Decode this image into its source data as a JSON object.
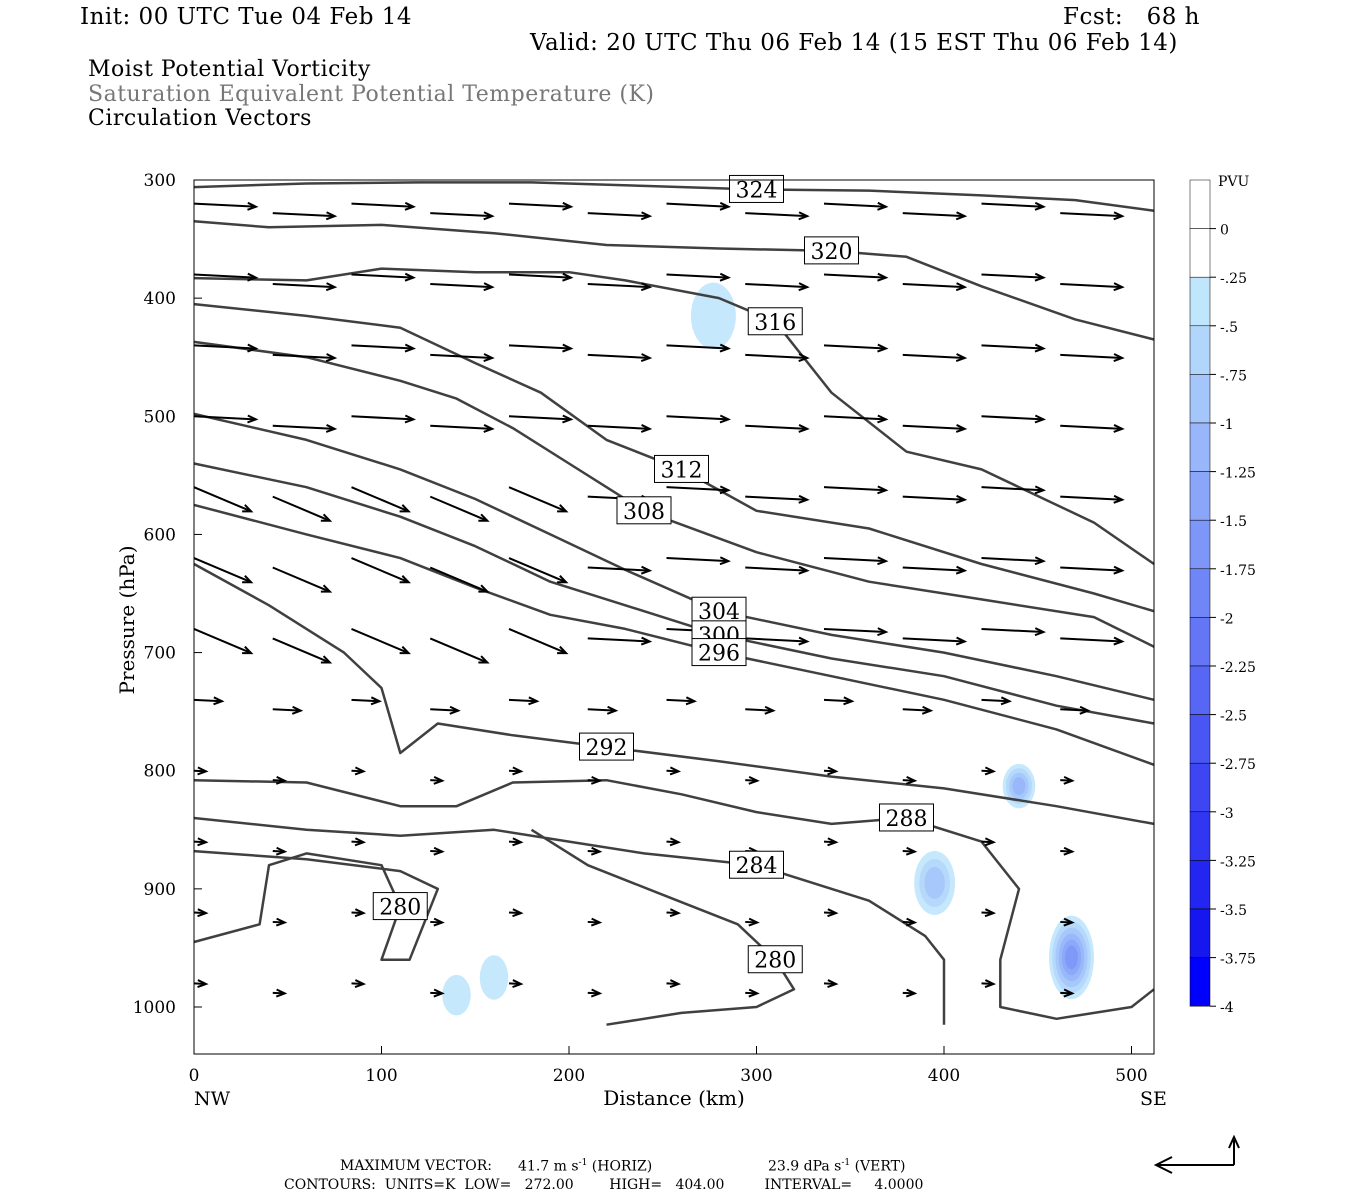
{
  "header": {
    "init": "Init: 00 UTC Tue 04 Feb 14",
    "fcst": "Fcst:   68 h",
    "valid": "Valid: 20 UTC Thu 06 Feb 14 (15 EST Thu 06 Feb 14)",
    "field1": "Moist Potential Vorticity",
    "field2": "Saturation Equivalent Potential Temperature (K)",
    "field3": "Circulation Vectors"
  },
  "footer": {
    "max_vector_label": "MAXIMUM VECTOR:",
    "horiz_value": "41.7 m s",
    "horiz_unit": "(HORIZ)",
    "vert_value": "23.9 dPa s",
    "vert_unit": "(VERT)",
    "contours": "CONTOURS:  UNITS=K  LOW=   272.00        HIGH=   404.00         INTERVAL=     4.0000"
  },
  "colors": {
    "contour": "#404040",
    "vector": "#000000",
    "pv_shades": [
      "#ffffff",
      "#ffffff",
      "#bfe6fc",
      "#b2d6fb",
      "#a5c6fa",
      "#98b6f9",
      "#8ba6f8",
      "#7e96f7",
      "#7186f6",
      "#6476f5",
      "#5766f4",
      "#4a56f3",
      "#3d46f2",
      "#3036f1",
      "#2326f0",
      "#1616ef",
      "#0000ff"
    ]
  },
  "chart_data": {
    "type": "cross-section",
    "xlabel": "Distance (km)",
    "ylabel": "Pressure (hPa)",
    "xlim": [
      0,
      512
    ],
    "ylim": [
      1040,
      300
    ],
    "xticks": [
      0,
      100,
      200,
      300,
      400,
      500
    ],
    "yticks": [
      300,
      400,
      500,
      600,
      700,
      800,
      900,
      1000
    ],
    "x_end_labels": {
      "left": "NW",
      "right": "SE"
    },
    "colorbar": {
      "title": "PVU",
      "labels": [
        "0",
        "-.25",
        "-.5",
        "-.75",
        "-1",
        "-1.25",
        "-1.5",
        "-1.75",
        "-2",
        "-2.25",
        "-2.5",
        "-2.75",
        "-3",
        "-3.25",
        "-3.5",
        "-3.75",
        "-4"
      ]
    },
    "isentropes": [
      {
        "label": "324",
        "pts": [
          [
            0,
            306
          ],
          [
            60,
            303
          ],
          [
            120,
            302
          ],
          [
            180,
            302
          ],
          [
            240,
            305
          ],
          [
            300,
            308
          ],
          [
            360,
            309
          ],
          [
            420,
            313
          ],
          [
            470,
            317
          ],
          [
            512,
            326
          ]
        ]
      },
      {
        "label": "320",
        "pts": [
          [
            0,
            335
          ],
          [
            40,
            340
          ],
          [
            100,
            338
          ],
          [
            160,
            345
          ],
          [
            220,
            355
          ],
          [
            280,
            358
          ],
          [
            340,
            360
          ],
          [
            380,
            365
          ],
          [
            420,
            390
          ],
          [
            470,
            418
          ],
          [
            512,
            435
          ]
        ]
      },
      {
        "label": "316",
        "pts": [
          [
            0,
            383
          ],
          [
            60,
            385
          ],
          [
            100,
            375
          ],
          [
            150,
            378
          ],
          [
            200,
            378
          ],
          [
            230,
            385
          ],
          [
            280,
            400
          ],
          [
            310,
            420
          ],
          [
            340,
            480
          ],
          [
            360,
            505
          ],
          [
            380,
            530
          ],
          [
            420,
            545
          ],
          [
            480,
            590
          ],
          [
            512,
            625
          ]
        ]
      },
      {
        "label": "312",
        "pts": [
          [
            0,
            405
          ],
          [
            60,
            415
          ],
          [
            110,
            425
          ],
          [
            150,
            455
          ],
          [
            185,
            480
          ],
          [
            220,
            520
          ],
          [
            260,
            545
          ],
          [
            300,
            580
          ],
          [
            360,
            595
          ],
          [
            420,
            625
          ],
          [
            480,
            650
          ],
          [
            512,
            665
          ]
        ]
      },
      {
        "label": "308",
        "pts": [
          [
            0,
            437
          ],
          [
            60,
            450
          ],
          [
            110,
            470
          ],
          [
            140,
            485
          ],
          [
            170,
            510
          ],
          [
            200,
            540
          ],
          [
            240,
            580
          ],
          [
            300,
            615
          ],
          [
            360,
            640
          ],
          [
            420,
            655
          ],
          [
            480,
            670
          ],
          [
            512,
            695
          ]
        ]
      },
      {
        "label": "304",
        "pts": [
          [
            0,
            498
          ],
          [
            60,
            520
          ],
          [
            110,
            545
          ],
          [
            150,
            570
          ],
          [
            190,
            600
          ],
          [
            230,
            630
          ],
          [
            280,
            665
          ],
          [
            340,
            685
          ],
          [
            400,
            700
          ],
          [
            460,
            720
          ],
          [
            512,
            740
          ]
        ]
      },
      {
        "label": "300",
        "pts": [
          [
            0,
            540
          ],
          [
            60,
            560
          ],
          [
            110,
            585
          ],
          [
            150,
            610
          ],
          [
            190,
            640
          ],
          [
            230,
            660
          ],
          [
            280,
            685
          ],
          [
            340,
            705
          ],
          [
            400,
            720
          ],
          [
            460,
            745
          ],
          [
            512,
            760
          ]
        ]
      },
      {
        "label": "296",
        "pts": [
          [
            0,
            575
          ],
          [
            60,
            600
          ],
          [
            110,
            620
          ],
          [
            150,
            645
          ],
          [
            190,
            668
          ],
          [
            230,
            680
          ],
          [
            280,
            700
          ],
          [
            340,
            720
          ],
          [
            400,
            740
          ],
          [
            460,
            765
          ],
          [
            512,
            795
          ]
        ]
      },
      {
        "label": "292",
        "pts": [
          [
            0,
            625
          ],
          [
            40,
            660
          ],
          [
            80,
            700
          ],
          [
            100,
            730
          ],
          [
            110,
            785
          ],
          [
            130,
            760
          ],
          [
            170,
            770
          ],
          [
            220,
            780
          ],
          [
            280,
            792
          ],
          [
            340,
            805
          ],
          [
            400,
            815
          ],
          [
            460,
            830
          ],
          [
            512,
            845
          ]
        ]
      },
      {
        "label": "288",
        "pts": [
          [
            0,
            808
          ],
          [
            60,
            810
          ],
          [
            110,
            830
          ],
          [
            140,
            830
          ],
          [
            170,
            810
          ],
          [
            220,
            808
          ],
          [
            260,
            820
          ],
          [
            300,
            835
          ],
          [
            340,
            845
          ],
          [
            380,
            840
          ],
          [
            420,
            860
          ],
          [
            440,
            900
          ],
          [
            430,
            960
          ],
          [
            430,
            1000
          ],
          [
            460,
            1010
          ],
          [
            500,
            1000
          ],
          [
            512,
            985
          ]
        ]
      },
      {
        "label": "284",
        "pts": [
          [
            0,
            840
          ],
          [
            60,
            850
          ],
          [
            110,
            855
          ],
          [
            160,
            850
          ],
          [
            200,
            860
          ],
          [
            240,
            870
          ],
          [
            300,
            880
          ],
          [
            360,
            910
          ],
          [
            390,
            940
          ],
          [
            400,
            960
          ],
          [
            400,
            1015
          ]
        ]
      },
      {
        "label": "280",
        "pts": [
          [
            0,
            868
          ],
          [
            60,
            875
          ],
          [
            110,
            885
          ],
          [
            130,
            900
          ],
          [
            115,
            960
          ],
          [
            100,
            960
          ],
          [
            110,
            915
          ],
          [
            100,
            880
          ],
          [
            60,
            870
          ],
          [
            40,
            880
          ],
          [
            35,
            930
          ],
          [
            0,
            945
          ]
        ]
      },
      {
        "label": "280",
        "pts": [
          [
            180,
            850
          ],
          [
            210,
            880
          ],
          [
            250,
            905
          ],
          [
            290,
            930
          ],
          [
            310,
            960
          ],
          [
            320,
            985
          ],
          [
            300,
            1000
          ],
          [
            260,
            1005
          ],
          [
            220,
            1015
          ]
        ]
      }
    ],
    "pv_regions": [
      {
        "x": 277,
        "p": 415,
        "rx": 16,
        "ry": 42,
        "level": "-.25"
      },
      {
        "x": 395,
        "p": 895,
        "rx": 14,
        "ry": 40,
        "level": "-.75"
      },
      {
        "x": 440,
        "p": 813,
        "rx": 10,
        "ry": 25,
        "level": "-1"
      },
      {
        "x": 468,
        "p": 958,
        "rx": 16,
        "ry": 55,
        "level": "-1.5"
      },
      {
        "x": 140,
        "p": 990,
        "rx": 8,
        "ry": 22,
        "level": "-.25"
      },
      {
        "x": 160,
        "p": 975,
        "rx": 8,
        "ry": 25,
        "level": "-.25"
      }
    ],
    "max_vector": {
      "horiz_m_s": 41.7,
      "vert_dPa_s": 23.9
    }
  }
}
